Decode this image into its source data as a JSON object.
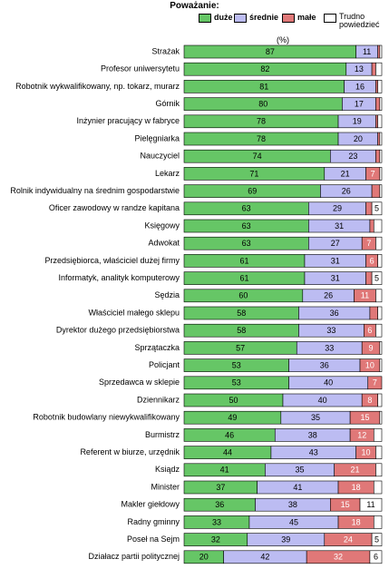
{
  "chart_data": {
    "type": "stacked-bar",
    "title": "Poważanie:",
    "subtitle": "(%)",
    "xlim": [
      0,
      100
    ],
    "categories": [
      "Strażak",
      "Profesor uniwersytetu",
      "Robotnik wykwalifikowany, np. tokarz, murarz",
      "Górnik",
      "Inżynier pracujący w fabryce",
      "Pielęgniarka",
      "Nauczyciel",
      "Lekarz",
      "Rolnik indywidualny na średnim gospodarstwie",
      "Oficer zawodowy w randze kapitana",
      "Księgowy",
      "Adwokat",
      "Przedsiębiorca, właściciel dużej firmy",
      "Informatyk, analityk komputerowy",
      "Sędzia",
      "Właściciel małego sklepu",
      "Dyrektor dużego przedsiębiorstwa",
      "Sprzątaczka",
      "Policjant",
      "Sprzedawca w sklepie",
      "Dziennikarz",
      "Robotnik budowlany niewykwalifikowany",
      "Burmistrz",
      "Referent w biurze, urzędnik",
      "Ksiądz",
      "Minister",
      "Makler giełdowy",
      "Radny gminny",
      "Poseł na Sejm",
      "Działacz partii politycznej"
    ],
    "series": [
      {
        "name": "duże",
        "color": "#66c666",
        "values": [
          87,
          82,
          81,
          80,
          78,
          78,
          74,
          71,
          69,
          63,
          63,
          63,
          61,
          61,
          60,
          58,
          58,
          57,
          53,
          53,
          50,
          49,
          46,
          44,
          41,
          37,
          36,
          33,
          32,
          20
        ]
      },
      {
        "name": "średnie",
        "color": "#bcbcf2",
        "values": [
          11,
          13,
          16,
          17,
          19,
          20,
          23,
          21,
          26,
          29,
          31,
          27,
          31,
          31,
          26,
          36,
          33,
          33,
          36,
          40,
          40,
          35,
          38,
          43,
          35,
          41,
          38,
          45,
          39,
          42
        ]
      },
      {
        "name": "małe",
        "color": "#e07878",
        "values": [
          1,
          2,
          1,
          2,
          1,
          1,
          2,
          7,
          4,
          3,
          2,
          7,
          6,
          3,
          11,
          4,
          6,
          9,
          10,
          7,
          8,
          15,
          12,
          10,
          21,
          18,
          15,
          18,
          24,
          32
        ]
      },
      {
        "name": "Trudno powiedzieć",
        "color": "#ffffff",
        "values": [
          1,
          3,
          2,
          1,
          2,
          1,
          1,
          1,
          1,
          5,
          4,
          3,
          2,
          5,
          3,
          2,
          3,
          1,
          1,
          0,
          2,
          1,
          4,
          3,
          3,
          4,
          11,
          4,
          5,
          6
        ]
      }
    ]
  }
}
